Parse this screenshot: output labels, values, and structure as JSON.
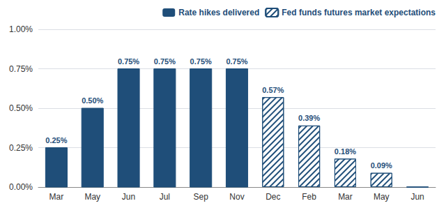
{
  "chart_data": {
    "type": "bar",
    "categories": [
      "Mar",
      "May",
      "Jun",
      "Jul",
      "Sep",
      "Nov",
      "Dec",
      "Feb",
      "Mar",
      "May",
      "Jun"
    ],
    "series": [
      {
        "name": "Rate hikes delivered",
        "color": "#1f4e79",
        "values": [
          0.25,
          0.5,
          0.75,
          0.75,
          0.75,
          0.75,
          null,
          null,
          null,
          null,
          null
        ],
        "value_labels": [
          "0.25%",
          "0.50%",
          "0.75%",
          "0.75%",
          "0.75%",
          "0.75%",
          null,
          null,
          null,
          null,
          null
        ]
      },
      {
        "name": "Fed funds futures market expectations",
        "color": "#1f4e79",
        "values": [
          null,
          null,
          null,
          null,
          null,
          null,
          0.57,
          0.39,
          0.18,
          0.09,
          0.0
        ],
        "value_labels": [
          null,
          null,
          null,
          null,
          null,
          null,
          "0.57%",
          "0.39%",
          "0.18%",
          "0.09%",
          null
        ]
      }
    ],
    "ylim": [
      0.0,
      1.0
    ],
    "yticks": [
      {
        "value": 0.0,
        "label": "0.00%"
      },
      {
        "value": 0.25,
        "label": "0.25%"
      },
      {
        "value": 0.5,
        "label": "0.50%"
      },
      {
        "value": 0.75,
        "label": "0.75%"
      },
      {
        "value": 1.0,
        "label": "1.00%"
      }
    ],
    "grid": true,
    "legend": "upper right",
    "data_labels": true
  }
}
